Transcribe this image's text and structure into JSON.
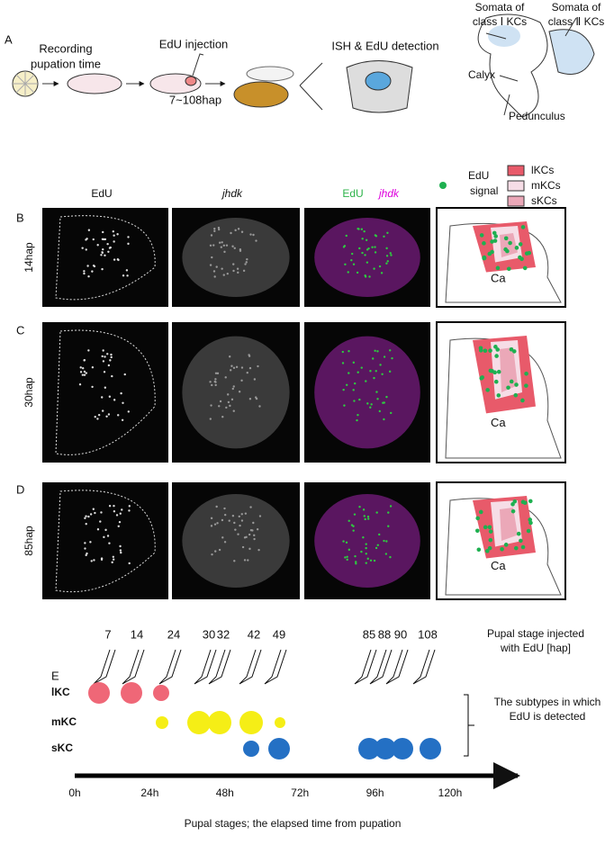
{
  "panel_labels": [
    "A",
    "B",
    "C",
    "D",
    "E"
  ],
  "panel_a": {
    "recording": [
      "Recording",
      "pupation time"
    ],
    "injection": "EdU injection",
    "range": "7~108hap",
    "detection": "ISH & EdU detection",
    "somata_1": [
      "Somata of",
      "class Ⅰ KCs"
    ],
    "somata_2": [
      "Somata of",
      "class Ⅱ KCs"
    ],
    "calyx": "Calyx",
    "pedunculus": "Pedunculus"
  },
  "columns": {
    "edu": "EdU",
    "jhdk": "jhdk",
    "merge_edu": "EdU",
    "merge_jhdk": "jhdk"
  },
  "legend": {
    "edu": [
      "EdU",
      "signal"
    ],
    "types": [
      "lKCs",
      "mKCs",
      "sKCs"
    ]
  },
  "rows": [
    {
      "stage": "14hap",
      "region": "Ca"
    },
    {
      "stage": "30hap",
      "region": "Ca"
    },
    {
      "stage": "85hap",
      "region": "Ca"
    }
  ],
  "panel_e": {
    "injection_times": [
      7,
      14,
      24,
      30,
      32,
      42,
      49,
      85,
      88,
      90,
      108
    ],
    "subtypes": [
      "lKC",
      "mKC",
      "sKC"
    ],
    "axis_ticks": [
      "0h",
      "24h",
      "48h",
      "72h",
      "96h",
      "120h"
    ],
    "note_top": [
      "Pupal stage injected",
      "with EdU [hap]"
    ],
    "note_mid": [
      "The subtypes in which",
      "EdU is detected"
    ],
    "axis_label": "Pupal stages; the elapsed time from pupation"
  }
}
